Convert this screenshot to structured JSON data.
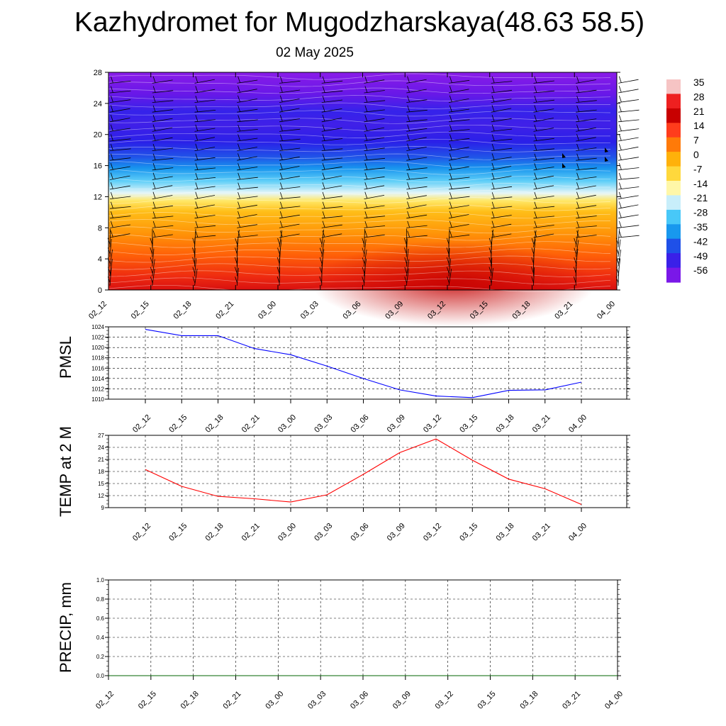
{
  "title": "Kazhydromet for Mugodzharskaya(48.63 58.5)",
  "subtitle": "02 May 2025",
  "time_labels": [
    "02_12",
    "02_15",
    "02_18",
    "02_21",
    "03_00",
    "03_03",
    "03_06",
    "03_09",
    "03_12",
    "03_15",
    "03_18",
    "03_21",
    "04_00"
  ],
  "colorbar": {
    "labels": [
      "35",
      "28",
      "21",
      "14",
      "7",
      "0",
      "-7",
      "-14",
      "-21",
      "-28",
      "-35",
      "-42",
      "-49",
      "-56"
    ],
    "colors": [
      "#f6c4c4",
      "#ee2020",
      "#c80000",
      "#ff3c1c",
      "#ff7a08",
      "#ffb10a",
      "#ffd83c",
      "#fff7a8",
      "#c8eefa",
      "#48c8f8",
      "#1898ee",
      "#1f50e8",
      "#3a20e8",
      "#7a18e8"
    ]
  },
  "chart_data": [
    {
      "type": "heatmap",
      "title": "Kazhydromet for Mugodzharskaya(48.63 58.5)",
      "subtitle": "02 May 2025",
      "x": [
        "02_12",
        "02_15",
        "02_18",
        "02_21",
        "03_00",
        "03_03",
        "03_06",
        "03_09",
        "03_12",
        "03_15",
        "03_18",
        "03_21",
        "04_00"
      ],
      "y_ticks": [
        0,
        4,
        8,
        12,
        16,
        20,
        24,
        28
      ],
      "ylim": [
        0,
        28
      ],
      "z_range": [
        -56,
        35
      ],
      "description_levels": "temperature (°C) by height level, with wind barbs"
    },
    {
      "type": "line",
      "ylabel": "PMSL",
      "x": [
        "02_12",
        "02_15",
        "02_18",
        "02_21",
        "03_00",
        "03_03",
        "03_06",
        "03_09",
        "03_12",
        "03_15",
        "03_18",
        "03_21",
        "04_00"
      ],
      "y": [
        1023.5,
        1022.3,
        1022.3,
        1019.8,
        1018.6,
        1016.4,
        1014,
        1011.8,
        1010.6,
        1010.3,
        1011.7,
        1011.8,
        1013.3
      ],
      "ylim": [
        1010,
        1024
      ],
      "yticks": [
        1010,
        1012,
        1014,
        1016,
        1018,
        1020,
        1022,
        1024
      ],
      "color": "#0000ff"
    },
    {
      "type": "line",
      "ylabel": "TEMP at 2 M",
      "x": [
        "02_12",
        "02_15",
        "02_18",
        "02_21",
        "03_00",
        "03_03",
        "03_06",
        "03_09",
        "03_12",
        "03_15",
        "03_18",
        "03_21",
        "04_00"
      ],
      "y": [
        18.5,
        14.3,
        11.8,
        11.2,
        10.4,
        12.2,
        17.3,
        22.7,
        26.1,
        20.8,
        16.1,
        13.7,
        9.8
      ],
      "ylim": [
        9,
        27
      ],
      "yticks": [
        9,
        12,
        15,
        18,
        21,
        24,
        27
      ],
      "color": "#ff0000"
    },
    {
      "type": "line",
      "ylabel": "PRECIP, mm",
      "x": [
        "02_12",
        "02_15",
        "02_18",
        "02_21",
        "03_00",
        "03_03",
        "03_06",
        "03_09",
        "03_12",
        "03_15",
        "03_18",
        "03_21",
        "04_00"
      ],
      "y": [
        0,
        0,
        0,
        0,
        0,
        0,
        0,
        0,
        0,
        0,
        0,
        0,
        0
      ],
      "ylim": [
        0,
        1
      ],
      "yticks": [
        "0.0",
        "0.2",
        "0.4",
        "0.6",
        "0.8",
        "1.0"
      ],
      "color": "#006400"
    }
  ]
}
